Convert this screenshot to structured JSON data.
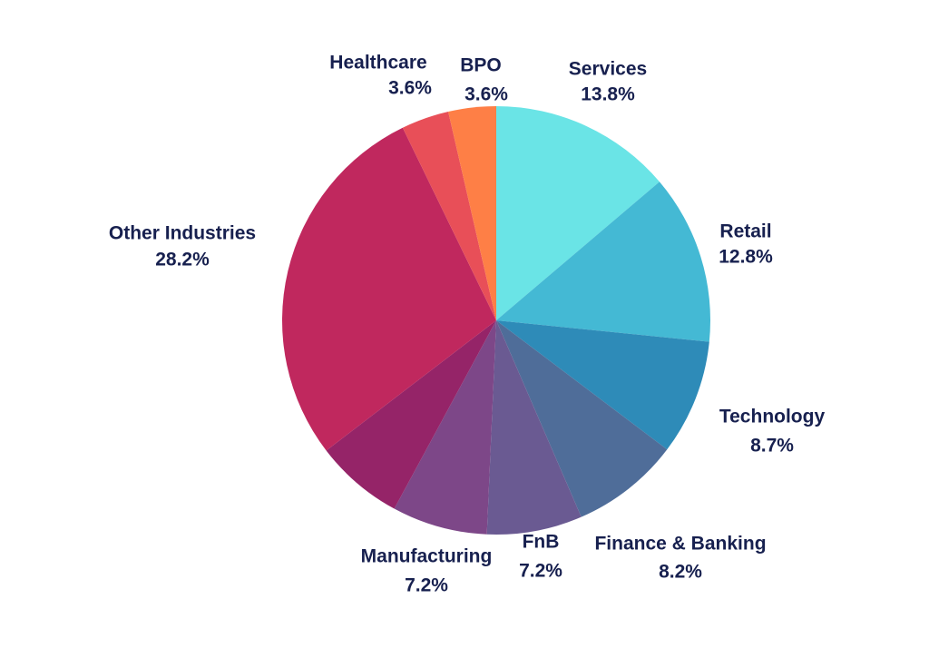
{
  "chart_data": {
    "type": "pie",
    "categories": [
      "Services",
      "Retail",
      "Technology",
      "Finance & Banking",
      "FnB",
      "Manufacturing",
      null,
      "Other Industries",
      "Healthcare",
      "BPO"
    ],
    "values": [
      13.8,
      12.8,
      8.7,
      8.2,
      7.2,
      7.2,
      6.7,
      28.2,
      3.6,
      3.6
    ],
    "value_labels": [
      "13.8%",
      "12.8%",
      "8.7%",
      "8.2%",
      "7.2%",
      "7.2%",
      null,
      "28.2%",
      "3.6%",
      "3.6%"
    ],
    "colors": [
      "#6ae4e6",
      "#44b9d4",
      "#2e8bb8",
      "#4f6d99",
      "#6a5a92",
      "#7d4788",
      "#952468",
      "#c0285e",
      "#e84f58",
      "#fe7f46"
    ]
  }
}
